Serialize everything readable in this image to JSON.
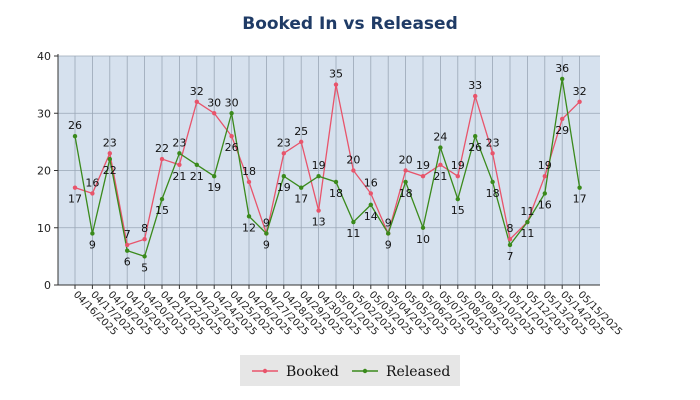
{
  "chart_data": {
    "type": "line",
    "title": "Booked In vs Released",
    "xlabel": "",
    "ylabel": "",
    "ylim": [
      0,
      40
    ],
    "yticks": [
      0,
      10,
      20,
      30,
      40
    ],
    "grid": true,
    "legend_position": "bottom-center",
    "categories": [
      "04/16/2025",
      "04/17/2025",
      "04/18/2025",
      "04/19/2025",
      "04/20/2025",
      "04/21/2025",
      "04/22/2025",
      "04/23/2025",
      "04/24/2025",
      "04/25/2025",
      "04/26/2025",
      "04/27/2025",
      "04/28/2025",
      "04/29/2025",
      "04/30/2025",
      "05/01/2025",
      "05/02/2025",
      "05/03/2025",
      "05/04/2025",
      "05/05/2025",
      "05/06/2025",
      "05/07/2025",
      "05/08/2025",
      "05/09/2025",
      "05/10/2025",
      "05/11/2025",
      "05/12/2025",
      "05/13/2025",
      "05/14/2025",
      "05/15/2025"
    ],
    "series": [
      {
        "name": "Booked",
        "color": "#e8546b",
        "values": [
          17,
          16,
          23,
          7,
          8,
          22,
          21,
          32,
          30,
          26,
          18,
          9,
          23,
          25,
          13,
          35,
          20,
          16,
          9,
          20,
          19,
          21,
          19,
          33,
          23,
          8,
          11,
          19,
          29,
          32
        ]
      },
      {
        "name": "Released",
        "color": "#3a8a1c",
        "values": [
          26,
          9,
          22,
          6,
          5,
          15,
          23,
          21,
          19,
          30,
          12,
          9,
          19,
          17,
          19,
          18,
          11,
          14,
          9,
          18,
          10,
          24,
          15,
          26,
          18,
          7,
          11,
          16,
          36,
          17
        ]
      }
    ],
    "plot_background": "#d6e1ee",
    "legend_background": "#e6e6e6"
  }
}
